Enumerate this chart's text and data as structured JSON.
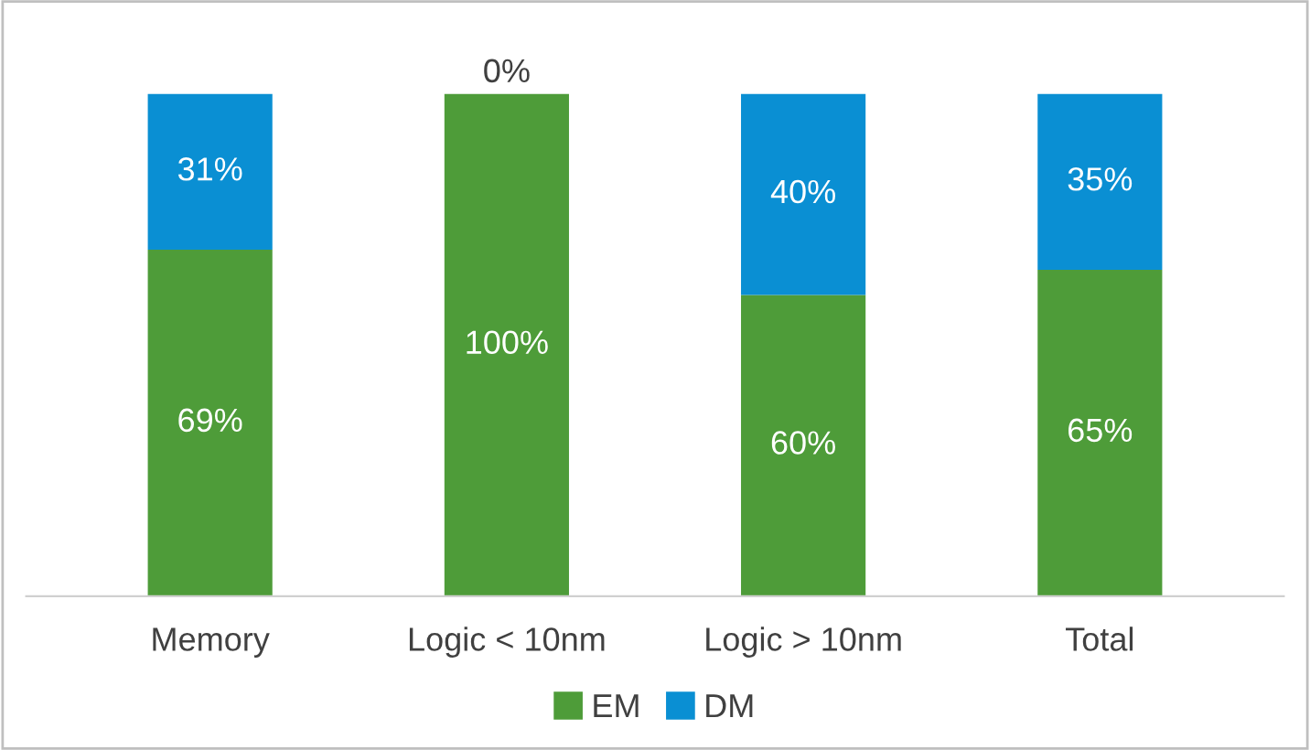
{
  "chart_data": {
    "type": "bar",
    "stacked": true,
    "categories": [
      "Memory",
      "Logic < 10nm",
      "Logic > 10nm",
      "Total"
    ],
    "series": [
      {
        "name": "EM",
        "color": "#4e9c39",
        "values": [
          69,
          100,
          60,
          65
        ],
        "value_labels": [
          "69%",
          "100%",
          "60%",
          "65%"
        ]
      },
      {
        "name": "DM",
        "color": "#0a8fd3",
        "values": [
          31,
          0,
          40,
          35
        ],
        "value_labels": [
          "31%",
          "0%",
          "40%",
          "35%"
        ]
      }
    ],
    "legend": "bottom",
    "grid": false
  }
}
